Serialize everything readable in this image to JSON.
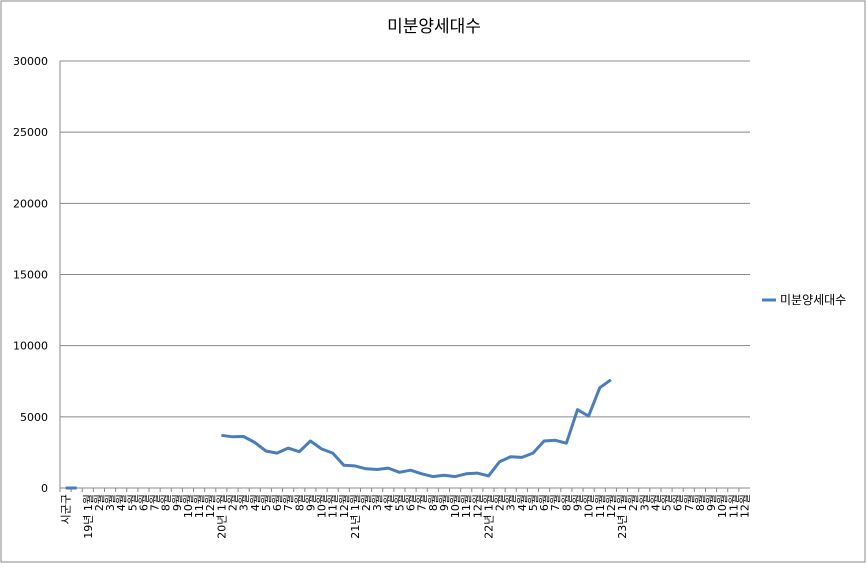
{
  "chart_data": {
    "type": "line",
    "title": "미분양세대수",
    "categories": [
      "시군구",
      null,
      "19년 1월",
      "2월",
      "3월",
      "4월",
      "5월",
      "6월",
      "7월",
      "8월",
      "9월",
      "10월",
      "11월",
      "12월",
      "20년 1월",
      "2월",
      "3월",
      "4월",
      "5월",
      "6월",
      "7월",
      "8월",
      "9월",
      "10월",
      "11월",
      "12월",
      "21년 1월",
      "2월",
      "3월",
      "4월",
      "5월",
      "6월",
      "7월",
      "8월",
      "9월",
      "10월",
      "11월",
      "12월",
      "22년 1월",
      "2월",
      "3월",
      "4월",
      "5월",
      "6월",
      "7월",
      "8월",
      "9월",
      "10월",
      "11월",
      "12월",
      "23년 1월",
      "2월",
      "3월",
      "4월",
      "5월",
      "6월",
      "7월",
      "8월",
      "9월",
      "10월",
      "11월",
      "12월"
    ],
    "series": [
      {
        "name": "미분양세대수",
        "color": "#4a7ebb",
        "values": [
          0,
          0,
          null,
          null,
          null,
          null,
          null,
          null,
          null,
          null,
          null,
          null,
          null,
          null,
          3700,
          3600,
          3620,
          3200,
          2600,
          2450,
          2800,
          2550,
          3300,
          2750,
          2450,
          1600,
          1550,
          1350,
          1300,
          1400,
          1100,
          1250,
          1000,
          800,
          900,
          800,
          1000,
          1050,
          850,
          1850,
          2200,
          2150,
          2450,
          3300,
          3350,
          3150,
          5500,
          5050,
          7050,
          7600,
          null,
          null,
          null,
          null,
          null,
          null,
          null,
          null,
          null,
          null,
          null,
          null
        ]
      }
    ],
    "ylim": [
      0,
      30000
    ],
    "yticks": [
      0,
      5000,
      10000,
      15000,
      20000,
      25000,
      30000
    ],
    "grid": true,
    "legend": "right"
  }
}
